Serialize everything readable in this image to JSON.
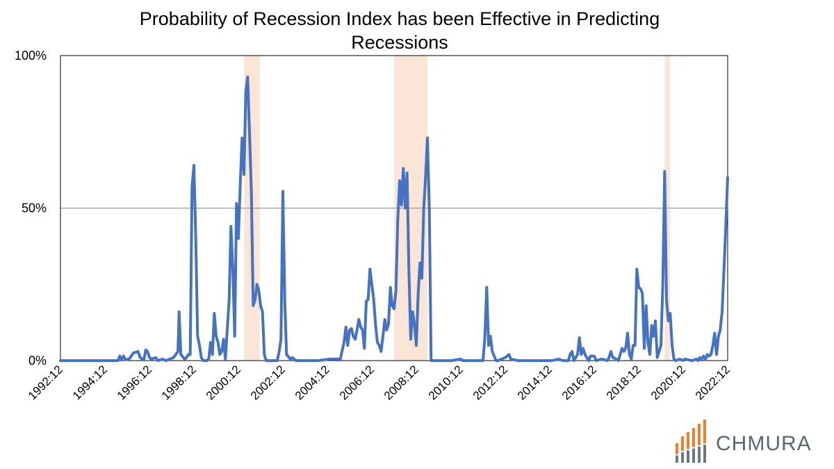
{
  "chart_data": {
    "type": "line",
    "title": "Probability of Recession Index has been Effective in Predicting Recessions",
    "xlabel": "",
    "ylabel": "",
    "ylim": [
      0,
      100
    ],
    "y_ticks": [
      "0%",
      "50%",
      "100%"
    ],
    "x_ticks": [
      "1992:12",
      "1994:12",
      "1996:12",
      "1998:12",
      "2000:12",
      "2002:12",
      "2004:12",
      "2006:12",
      "2008:12",
      "2010:12",
      "2012:12",
      "2014:12",
      "2016:12",
      "2018:12",
      "2020:12",
      "2022:12"
    ],
    "x_range": [
      1992.917,
      2022.917
    ],
    "grid": "horizontal gridline at 50%",
    "legend": "none",
    "line_color": "#4472c4",
    "recession_color": "#fbe5d6",
    "recession_shading": [
      {
        "start": 2001.17,
        "end": 2001.88
      },
      {
        "start": 2007.92,
        "end": 2009.42
      },
      {
        "start": 2020.08,
        "end": 2020.33
      }
    ],
    "series": [
      {
        "values": [
          [
            1992.917,
            0
          ],
          [
            1993.5,
            0
          ],
          [
            1994.0,
            0
          ],
          [
            1994.5,
            0
          ],
          [
            1995.0,
            0
          ],
          [
            1995.5,
            0
          ],
          [
            1995.583,
            1.5
          ],
          [
            1995.667,
            0.5
          ],
          [
            1995.75,
            1.5
          ],
          [
            1995.833,
            0.3
          ],
          [
            1996.0,
            0.5
          ],
          [
            1996.2,
            2.5
          ],
          [
            1996.4,
            3
          ],
          [
            1996.5,
            1
          ],
          [
            1996.667,
            0.2
          ],
          [
            1996.75,
            3.5
          ],
          [
            1996.833,
            3
          ],
          [
            1996.917,
            1
          ],
          [
            1997.0,
            0.5
          ],
          [
            1997.2,
            1
          ],
          [
            1997.3,
            0
          ],
          [
            1997.5,
            0.5
          ],
          [
            1997.667,
            0
          ],
          [
            1997.833,
            0.5
          ],
          [
            1998.0,
            1
          ],
          [
            1998.2,
            3
          ],
          [
            1998.25,
            16
          ],
          [
            1998.33,
            2
          ],
          [
            1998.5,
            0.5
          ],
          [
            1998.583,
            1
          ],
          [
            1998.667,
            2
          ],
          [
            1998.75,
            2
          ],
          [
            1998.833,
            57
          ],
          [
            1998.917,
            64
          ],
          [
            1999.0,
            40
          ],
          [
            1999.083,
            8
          ],
          [
            1999.167,
            5
          ],
          [
            1999.25,
            1
          ],
          [
            1999.333,
            0
          ],
          [
            1999.5,
            0
          ],
          [
            1999.583,
            0.5
          ],
          [
            1999.667,
            6
          ],
          [
            1999.75,
            2
          ],
          [
            1999.833,
            15.5
          ],
          [
            1999.917,
            8
          ],
          [
            2000.0,
            6
          ],
          [
            2000.083,
            2
          ],
          [
            2000.167,
            3
          ],
          [
            2000.25,
            7
          ],
          [
            2000.333,
            0.5
          ],
          [
            2000.5,
            20
          ],
          [
            2000.583,
            44
          ],
          [
            2000.667,
            30
          ],
          [
            2000.75,
            8
          ],
          [
            2000.833,
            51.5
          ],
          [
            2000.917,
            40
          ],
          [
            2001.0,
            58
          ],
          [
            2001.083,
            73
          ],
          [
            2001.167,
            61
          ],
          [
            2001.25,
            88
          ],
          [
            2001.333,
            93
          ],
          [
            2001.417,
            75
          ],
          [
            2001.5,
            55
          ],
          [
            2001.583,
            18
          ],
          [
            2001.667,
            20
          ],
          [
            2001.75,
            25
          ],
          [
            2001.833,
            23
          ],
          [
            2001.917,
            18
          ],
          [
            2002.0,
            16
          ],
          [
            2002.083,
            2
          ],
          [
            2002.167,
            0
          ],
          [
            2002.5,
            0
          ],
          [
            2002.667,
            0
          ],
          [
            2002.75,
            3
          ],
          [
            2002.833,
            7
          ],
          [
            2002.917,
            55.5
          ],
          [
            2003.0,
            20
          ],
          [
            2003.083,
            2
          ],
          [
            2003.25,
            0.5
          ],
          [
            2003.333,
            1
          ],
          [
            2003.5,
            0
          ],
          [
            2004.0,
            0
          ],
          [
            2004.5,
            0
          ],
          [
            2005.0,
            0.5
          ],
          [
            2005.5,
            0.5
          ],
          [
            2005.667,
            6
          ],
          [
            2005.75,
            11
          ],
          [
            2005.833,
            5
          ],
          [
            2005.917,
            10
          ],
          [
            2006.0,
            10.5
          ],
          [
            2006.083,
            8
          ],
          [
            2006.167,
            7
          ],
          [
            2006.25,
            10
          ],
          [
            2006.333,
            13.5
          ],
          [
            2006.417,
            11
          ],
          [
            2006.5,
            10
          ],
          [
            2006.583,
            4
          ],
          [
            2006.667,
            19.5
          ],
          [
            2006.75,
            20
          ],
          [
            2006.833,
            30
          ],
          [
            2006.917,
            25
          ],
          [
            2007.0,
            20
          ],
          [
            2007.083,
            12
          ],
          [
            2007.167,
            6
          ],
          [
            2007.25,
            5
          ],
          [
            2007.333,
            3
          ],
          [
            2007.417,
            8
          ],
          [
            2007.5,
            13.5
          ],
          [
            2007.583,
            10
          ],
          [
            2007.667,
            12
          ],
          [
            2007.75,
            24
          ],
          [
            2007.833,
            18
          ],
          [
            2007.917,
            17
          ],
          [
            2008.0,
            23
          ],
          [
            2008.083,
            46
          ],
          [
            2008.167,
            59
          ],
          [
            2008.25,
            51
          ],
          [
            2008.333,
            63
          ],
          [
            2008.417,
            50
          ],
          [
            2008.5,
            61.5
          ],
          [
            2008.583,
            30
          ],
          [
            2008.667,
            7
          ],
          [
            2008.75,
            16
          ],
          [
            2008.833,
            12
          ],
          [
            2008.917,
            5
          ],
          [
            2009.0,
            22
          ],
          [
            2009.083,
            32
          ],
          [
            2009.167,
            27
          ],
          [
            2009.25,
            50
          ],
          [
            2009.333,
            60
          ],
          [
            2009.417,
            73
          ],
          [
            2009.5,
            50
          ],
          [
            2009.583,
            0
          ],
          [
            2010.0,
            0
          ],
          [
            2010.5,
            0
          ],
          [
            2010.917,
            0.5
          ],
          [
            2011.0,
            0
          ],
          [
            2011.5,
            0
          ],
          [
            2011.917,
            0
          ],
          [
            2012.0,
            8
          ],
          [
            2012.083,
            24
          ],
          [
            2012.167,
            5
          ],
          [
            2012.25,
            8
          ],
          [
            2012.333,
            3
          ],
          [
            2012.5,
            0
          ],
          [
            2012.583,
            0
          ],
          [
            2012.75,
            0.5
          ],
          [
            2012.917,
            1
          ],
          [
            2013.0,
            1.5
          ],
          [
            2013.083,
            2
          ],
          [
            2013.167,
            0.5
          ],
          [
            2013.5,
            0
          ],
          [
            2014.0,
            0
          ],
          [
            2014.5,
            0
          ],
          [
            2015.0,
            0
          ],
          [
            2015.333,
            0.5
          ],
          [
            2015.5,
            0
          ],
          [
            2015.75,
            0
          ],
          [
            2015.833,
            2
          ],
          [
            2015.917,
            3
          ],
          [
            2016.0,
            0
          ],
          [
            2016.167,
            2
          ],
          [
            2016.25,
            7.5
          ],
          [
            2016.333,
            2
          ],
          [
            2016.417,
            4
          ],
          [
            2016.5,
            2
          ],
          [
            2016.583,
            1
          ],
          [
            2016.667,
            0
          ],
          [
            2016.75,
            1.5
          ],
          [
            2016.917,
            1.5
          ],
          [
            2017.0,
            0
          ],
          [
            2017.25,
            0.5
          ],
          [
            2017.5,
            0
          ],
          [
            2017.583,
            1
          ],
          [
            2017.667,
            3
          ],
          [
            2017.75,
            1
          ],
          [
            2017.917,
            0.5
          ],
          [
            2018.0,
            0
          ],
          [
            2018.167,
            4
          ],
          [
            2018.25,
            3
          ],
          [
            2018.333,
            4
          ],
          [
            2018.417,
            9
          ],
          [
            2018.5,
            2
          ],
          [
            2018.583,
            0.5
          ],
          [
            2018.667,
            5
          ],
          [
            2018.75,
            5
          ],
          [
            2018.833,
            30
          ],
          [
            2018.917,
            24
          ],
          [
            2019.0,
            23.5
          ],
          [
            2019.083,
            22
          ],
          [
            2019.167,
            4
          ],
          [
            2019.25,
            18
          ],
          [
            2019.333,
            6
          ],
          [
            2019.417,
            2
          ],
          [
            2019.5,
            11.5
          ],
          [
            2019.583,
            8
          ],
          [
            2019.667,
            13
          ],
          [
            2019.75,
            1
          ],
          [
            2019.833,
            3
          ],
          [
            2019.917,
            5
          ],
          [
            2020.0,
            25
          ],
          [
            2020.083,
            62
          ],
          [
            2020.167,
            20
          ],
          [
            2020.25,
            13
          ],
          [
            2020.333,
            15.5
          ],
          [
            2020.417,
            5
          ],
          [
            2020.5,
            0.5
          ],
          [
            2020.583,
            0
          ],
          [
            2020.75,
            0.5
          ],
          [
            2020.917,
            0
          ],
          [
            2021.0,
            0.5
          ],
          [
            2021.167,
            0.2
          ],
          [
            2021.333,
            0
          ],
          [
            2021.5,
            0.5
          ],
          [
            2021.583,
            0
          ],
          [
            2021.667,
            1
          ],
          [
            2021.75,
            0.5
          ],
          [
            2021.833,
            1.5
          ],
          [
            2021.917,
            0.3
          ],
          [
            2022.0,
            2
          ],
          [
            2022.083,
            1.5
          ],
          [
            2022.167,
            2
          ],
          [
            2022.25,
            5
          ],
          [
            2022.333,
            9
          ],
          [
            2022.417,
            2
          ],
          [
            2022.5,
            8
          ],
          [
            2022.583,
            10
          ],
          [
            2022.667,
            16
          ],
          [
            2022.75,
            30
          ],
          [
            2022.833,
            44
          ],
          [
            2022.917,
            60
          ]
        ]
      }
    ]
  },
  "logo": {
    "text": "CHMURA",
    "bar_colors": [
      "#f07d2a",
      "#6b7680"
    ]
  }
}
